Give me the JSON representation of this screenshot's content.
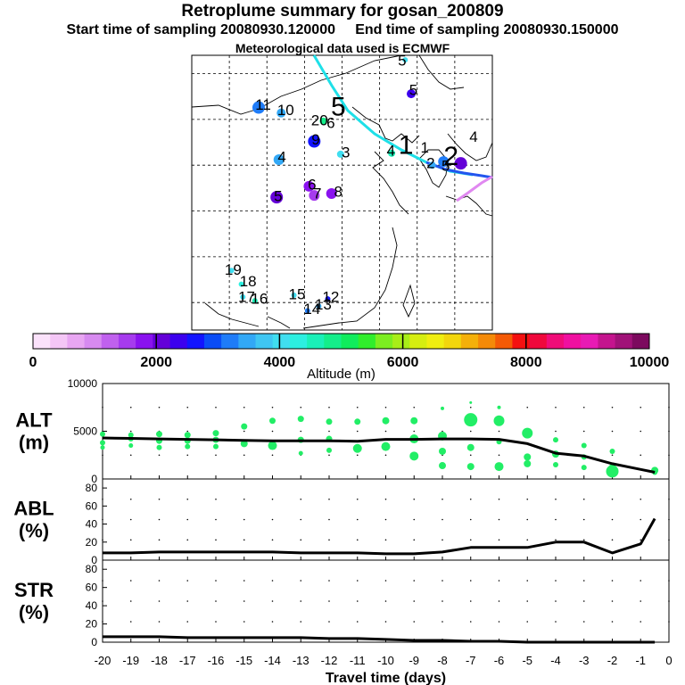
{
  "header": {
    "title": "Retroplume summary for gosan_200809",
    "start_label": "Start time of sampling 20080930.120000",
    "end_label": "End time of sampling 20080930.150000",
    "met_label": "Meteorological data used is ECMWF"
  },
  "colors": {
    "main_line": "#000000",
    "plume_cyan": "#1ee0e8",
    "alt_dots": "#22ee66",
    "label_color": "#000000"
  },
  "map_labels": [
    {
      "text": "5",
      "lon": 133.0,
      "lat": 51.3,
      "big": false
    },
    {
      "text": "5",
      "lon": 134.5,
      "lat": 48.1,
      "big": false
    },
    {
      "text": "11",
      "lon": 114.5,
      "lat": 46.5,
      "big": false
    },
    {
      "text": "10",
      "lon": 117.5,
      "lat": 45.9,
      "big": false
    },
    {
      "text": "5",
      "lon": 124.5,
      "lat": 46.2,
      "big": true
    },
    {
      "text": "20",
      "lon": 122.0,
      "lat": 44.8,
      "big": false
    },
    {
      "text": "6",
      "lon": 123.5,
      "lat": 44.5,
      "big": false
    },
    {
      "text": "9",
      "lon": 121.5,
      "lat": 42.7,
      "big": false
    },
    {
      "text": "3",
      "lon": 125.5,
      "lat": 41.3,
      "big": false
    },
    {
      "text": "4",
      "lon": 117.0,
      "lat": 40.8,
      "big": false
    },
    {
      "text": "4",
      "lon": 131.5,
      "lat": 41.5,
      "big": false
    },
    {
      "text": "1",
      "lon": 133.5,
      "lat": 42.0,
      "big": true
    },
    {
      "text": "1",
      "lon": 136.0,
      "lat": 41.8,
      "big": false
    },
    {
      "text": "4",
      "lon": 142.5,
      "lat": 43.0,
      "big": false
    },
    {
      "text": "2",
      "lon": 139.5,
      "lat": 40.8,
      "big": true
    },
    {
      "text": "2",
      "lon": 136.8,
      "lat": 40.1,
      "big": false
    },
    {
      "text": "5",
      "lon": 138.8,
      "lat": 39.8,
      "big": false
    },
    {
      "text": "6",
      "lon": 121.0,
      "lat": 37.8,
      "big": false
    },
    {
      "text": "7",
      "lon": 121.7,
      "lat": 36.8,
      "big": false
    },
    {
      "text": "8",
      "lon": 124.5,
      "lat": 37.0,
      "big": false
    },
    {
      "text": "5",
      "lon": 116.5,
      "lat": 36.5,
      "big": false
    },
    {
      "text": "19",
      "lon": 110.5,
      "lat": 28.5,
      "big": false
    },
    {
      "text": "18",
      "lon": 112.5,
      "lat": 27.2,
      "big": false
    },
    {
      "text": "17",
      "lon": 112.3,
      "lat": 25.5,
      "big": false
    },
    {
      "text": "16",
      "lon": 114.0,
      "lat": 25.3,
      "big": false
    },
    {
      "text": "15",
      "lon": 119.0,
      "lat": 25.8,
      "big": false
    },
    {
      "text": "12",
      "lon": 123.5,
      "lat": 25.5,
      "big": false
    },
    {
      "text": "14",
      "lon": 121.0,
      "lat": 24.2,
      "big": false
    },
    {
      "text": "13",
      "lon": 122.5,
      "lat": 24.7,
      "big": false
    }
  ],
  "colorbar": {
    "ticks": [
      "0",
      "2000",
      "4000",
      "6000",
      "8000",
      "10000"
    ],
    "label": "Altitude (m)",
    "colors": [
      "#fbe2fb",
      "#f4c6f6",
      "#e8a6f2",
      "#d78af0",
      "#c061ee",
      "#a63bee",
      "#8a12ef",
      "#6400d8",
      "#3c00ee",
      "#1214ff",
      "#0a4cf6",
      "#1f7cf8",
      "#32a8f6",
      "#3fc6f2",
      "#40def0",
      "#2cefe0",
      "#1af0b8",
      "#14ee8a",
      "#10ec5c",
      "#30ee2c",
      "#7cee20",
      "#a8ee18",
      "#d6ee10",
      "#f0ee10",
      "#f2d60c",
      "#f4b00a",
      "#f48a08",
      "#f45a06",
      "#f41010",
      "#f0083c",
      "#f00c78",
      "#f010a0",
      "#e81ab4",
      "#c4148e",
      "#a01278",
      "#7c0a5e"
    ]
  },
  "chart_data": [
    {
      "type": "line",
      "panel": "ALT",
      "ylabel_line1": "ALT",
      "ylabel_line2": "(m)",
      "ylim": [
        0,
        10000
      ],
      "yticks": [
        "0",
        "5000",
        "10000"
      ],
      "x": [
        -20,
        -19,
        -18,
        -17,
        -16,
        -15,
        -14,
        -13,
        -12,
        -11,
        -10,
        -9,
        -8,
        -7,
        -6,
        -5,
        -4,
        -3,
        -2,
        -1,
        -0.5
      ],
      "values": [
        4300,
        4250,
        4200,
        4150,
        4100,
        4050,
        4000,
        4000,
        4000,
        3950,
        4150,
        4150,
        4200,
        4200,
        4150,
        3700,
        2700,
        2400,
        1600,
        1000,
        700
      ],
      "scatter": [
        {
          "x": -20,
          "y": 4700,
          "s": 3
        },
        {
          "x": -20,
          "y": 3800,
          "s": 3
        },
        {
          "x": -20,
          "y": 3300,
          "s": 2.5
        },
        {
          "x": -19,
          "y": 4600,
          "s": 3
        },
        {
          "x": -19,
          "y": 4200,
          "s": 3
        },
        {
          "x": -19,
          "y": 3500,
          "s": 2.5
        },
        {
          "x": -18,
          "y": 4700,
          "s": 3.5
        },
        {
          "x": -18,
          "y": 4000,
          "s": 3.5
        },
        {
          "x": -18,
          "y": 3300,
          "s": 3
        },
        {
          "x": -17,
          "y": 4600,
          "s": 3.5
        },
        {
          "x": -17,
          "y": 4000,
          "s": 3.5
        },
        {
          "x": -17,
          "y": 3400,
          "s": 3
        },
        {
          "x": -16,
          "y": 4800,
          "s": 3.5
        },
        {
          "x": -16,
          "y": 4100,
          "s": 3.5
        },
        {
          "x": -16,
          "y": 3400,
          "s": 3
        },
        {
          "x": -15,
          "y": 5500,
          "s": 3.5
        },
        {
          "x": -15,
          "y": 3700,
          "s": 4
        },
        {
          "x": -14,
          "y": 6100,
          "s": 3.5
        },
        {
          "x": -14,
          "y": 3500,
          "s": 5
        },
        {
          "x": -13,
          "y": 6300,
          "s": 3.5
        },
        {
          "x": -13,
          "y": 4100,
          "s": 3.5
        },
        {
          "x": -13,
          "y": 2700,
          "s": 2.5
        },
        {
          "x": -12,
          "y": 6000,
          "s": 3.5
        },
        {
          "x": -12,
          "y": 4200,
          "s": 3.5
        },
        {
          "x": -12,
          "y": 3000,
          "s": 3
        },
        {
          "x": -11,
          "y": 6000,
          "s": 3.5
        },
        {
          "x": -11,
          "y": 3200,
          "s": 5
        },
        {
          "x": -10,
          "y": 6100,
          "s": 4
        },
        {
          "x": -10,
          "y": 3400,
          "s": 5
        },
        {
          "x": -9,
          "y": 6100,
          "s": 4
        },
        {
          "x": -9,
          "y": 4200,
          "s": 5
        },
        {
          "x": -9,
          "y": 2400,
          "s": 5
        },
        {
          "x": -8,
          "y": 7400,
          "s": 2
        },
        {
          "x": -8,
          "y": 4500,
          "s": 5
        },
        {
          "x": -8,
          "y": 2900,
          "s": 4
        },
        {
          "x": -8,
          "y": 1400,
          "s": 4
        },
        {
          "x": -7,
          "y": 8000,
          "s": 1.5
        },
        {
          "x": -7,
          "y": 6200,
          "s": 7.5
        },
        {
          "x": -7,
          "y": 3300,
          "s": 4
        },
        {
          "x": -7,
          "y": 1300,
          "s": 4
        },
        {
          "x": -6,
          "y": 7500,
          "s": 2
        },
        {
          "x": -6,
          "y": 6100,
          "s": 6
        },
        {
          "x": -6,
          "y": 3900,
          "s": 3
        },
        {
          "x": -6,
          "y": 1300,
          "s": 5
        },
        {
          "x": -5,
          "y": 4800,
          "s": 6
        },
        {
          "x": -5,
          "y": 2300,
          "s": 4
        },
        {
          "x": -5,
          "y": 1600,
          "s": 4
        },
        {
          "x": -4,
          "y": 4100,
          "s": 3
        },
        {
          "x": -4,
          "y": 2600,
          "s": 4
        },
        {
          "x": -4,
          "y": 1500,
          "s": 3
        },
        {
          "x": -3,
          "y": 3500,
          "s": 3
        },
        {
          "x": -3,
          "y": 2300,
          "s": 3
        },
        {
          "x": -3,
          "y": 1200,
          "s": 3
        },
        {
          "x": -2,
          "y": 2900,
          "s": 3
        },
        {
          "x": -2,
          "y": 800,
          "s": 7
        },
        {
          "x": -2,
          "y": 1200,
          "s": 4
        },
        {
          "x": -0.5,
          "y": 900,
          "s": 4
        },
        {
          "x": -0.5,
          "y": 700,
          "s": 3
        }
      ]
    },
    {
      "type": "line",
      "panel": "ABL",
      "ylabel_line1": "ABL",
      "ylabel_line2": "(%)",
      "ylim": [
        0,
        90
      ],
      "yticks": [
        "0",
        "20",
        "40",
        "60",
        "80"
      ],
      "x": [
        -20,
        -19,
        -18,
        -17,
        -16,
        -15,
        -14,
        -13,
        -12,
        -11,
        -10,
        -9,
        -8,
        -7,
        -6,
        -5,
        -4,
        -3,
        -2,
        -1,
        -0.5
      ],
      "values": [
        8,
        8,
        9,
        9,
        9,
        9,
        9,
        8,
        8,
        8,
        7,
        7,
        9,
        14,
        14,
        14,
        20,
        20,
        8,
        18,
        46
      ]
    },
    {
      "type": "line",
      "panel": "STR",
      "ylabel_line1": "STR",
      "ylabel_line2": "(%)",
      "ylim": [
        0,
        90
      ],
      "yticks": [
        "0",
        "20",
        "40",
        "60",
        "80"
      ],
      "x": [
        -20,
        -19,
        -18,
        -17,
        -16,
        -15,
        -14,
        -13,
        -12,
        -11,
        -10,
        -9,
        -8,
        -7,
        -6,
        -5,
        -4,
        -3,
        -2,
        -1,
        -0.5
      ],
      "values": [
        6,
        6,
        6,
        5,
        5,
        5,
        5,
        5,
        4,
        4,
        3,
        2,
        2,
        1,
        1,
        0,
        0,
        0,
        0,
        0,
        0
      ],
      "xlabel": "Travel time (days)",
      "xtick_labels": [
        "-20",
        "-19",
        "-18",
        "-17",
        "-16",
        "-15",
        "-14",
        "-13",
        "-12",
        "-11",
        "-10",
        "-9",
        "-8",
        "-7",
        "-6",
        "-5",
        "-4",
        "-3",
        "-2",
        "-1",
        "0"
      ]
    }
  ]
}
